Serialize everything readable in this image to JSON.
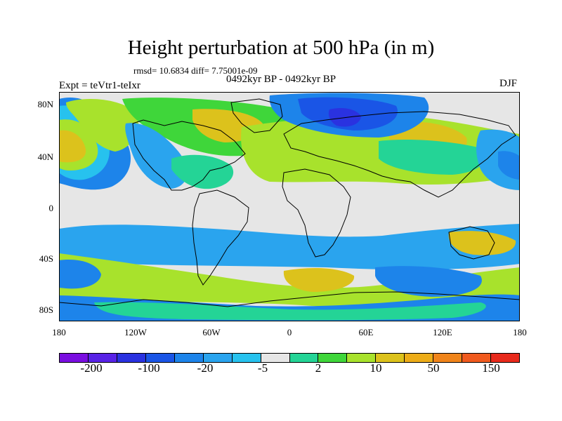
{
  "figure": {
    "title": "Height perturbation at 500 hPa (in m)",
    "stats": "rmsd= 10.6834 diff= 7.75001e-09",
    "period": "0492kyr BP - 0492kyr BP",
    "experiment": "Expt = teVtr1-teIxr",
    "season": "DJF"
  },
  "axes": {
    "lat_ticks": [
      "80N",
      "40N",
      "0",
      "40S",
      "80S"
    ],
    "lon_ticks": [
      "180",
      "120W",
      "60W",
      "0",
      "60E",
      "120E",
      "180"
    ],
    "lon_range": [
      -180,
      180
    ],
    "lat_range": [
      -90,
      90
    ]
  },
  "colorbar": {
    "colors": [
      "#7a0ee0",
      "#5822e6",
      "#2a32e0",
      "#1a55e6",
      "#1d84ea",
      "#2aa4ee",
      "#27c2ee",
      "#e6e6e6",
      "#24d496",
      "#3fd63a",
      "#a8e22c",
      "#dcc21c",
      "#ecac18",
      "#f0841a",
      "#f05a1e",
      "#e82a1c"
    ],
    "labels": [
      "-200",
      "-100",
      "-20",
      "-5",
      "2",
      "10",
      "50",
      "150"
    ]
  },
  "map_fields": {
    "colors": {
      "background": "#e6e6e6",
      "deep_blue": "#1a55e6",
      "darker_blue": "#2a32e0",
      "mid_blue": "#1d84ea",
      "light_blue": "#2aa4ee",
      "cyan": "#27c2ee",
      "teal": "#24d496",
      "green": "#3fd63a",
      "yellow_green": "#a8e22c",
      "gold": "#dcc21c",
      "coast": "#000000"
    }
  }
}
